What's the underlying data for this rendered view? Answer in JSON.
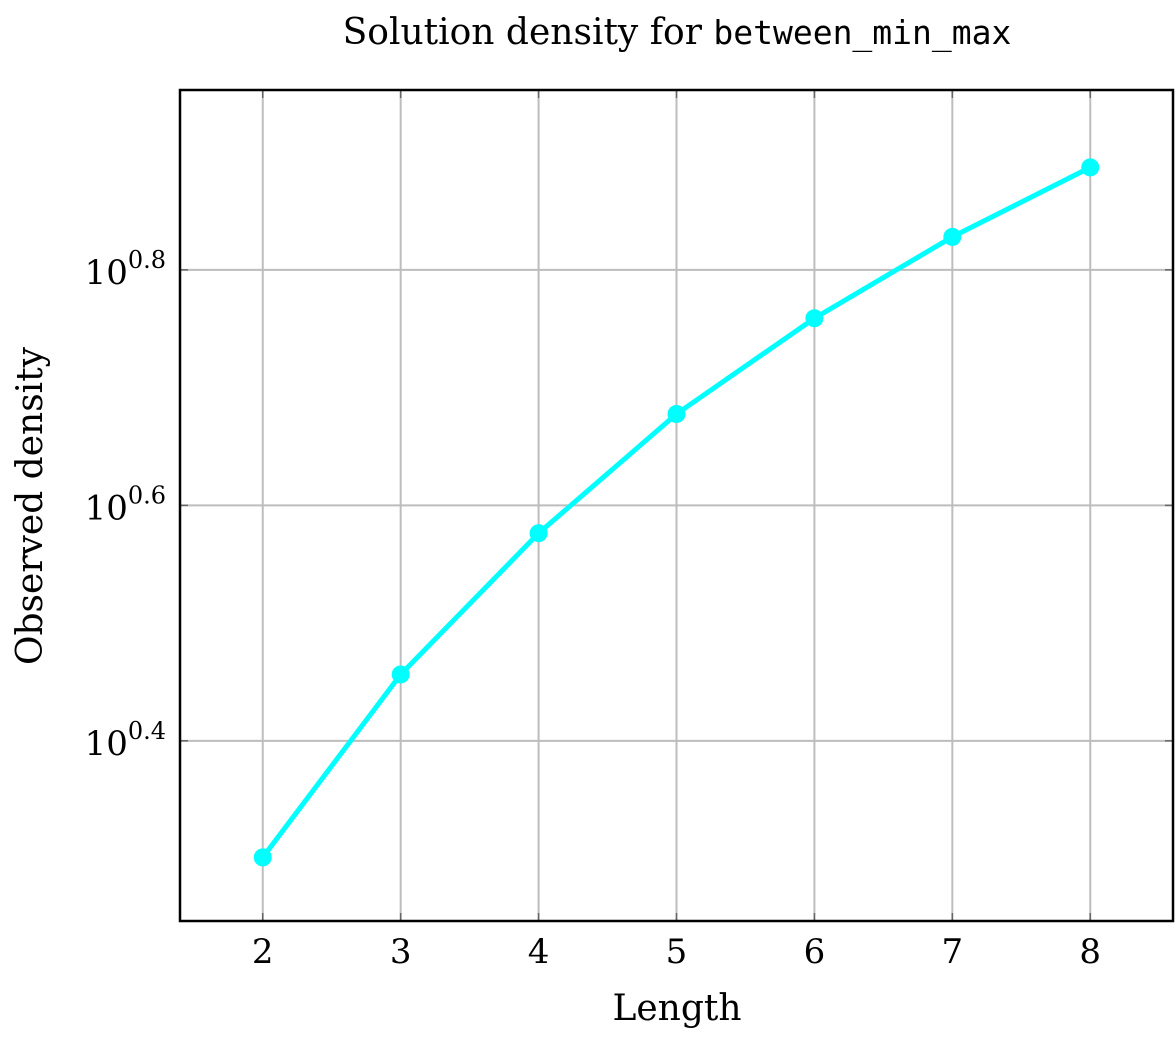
{
  "chart_data": {
    "type": "line",
    "title_prefix": "Solution density for ",
    "title_code": "between_min_max",
    "xlabel": "Length",
    "ylabel": "Observed density",
    "y_scale": "log10",
    "x": [
      2,
      3,
      4,
      5,
      6,
      7,
      8
    ],
    "series": [
      {
        "values": [
          2.0,
          2.86,
          3.77,
          4.76,
          5.74,
          6.73,
          7.71
        ],
        "color": "#00FFFF"
      }
    ],
    "x_ticks": [
      "2",
      "3",
      "4",
      "5",
      "6",
      "7",
      "8"
    ],
    "y_ticks": [
      {
        "value": 2.512,
        "base": "10",
        "exp": "0.4"
      },
      {
        "value": 3.981,
        "base": "10",
        "exp": "0.6"
      },
      {
        "value": 6.31,
        "base": "10",
        "exp": "0.8"
      }
    ],
    "xlim": [
      1.4,
      8.6
    ],
    "ylim": [
      1.766,
      8.97
    ],
    "grid": true,
    "grid_color": "#BDBDBD",
    "line_color": "#00FFFF"
  }
}
